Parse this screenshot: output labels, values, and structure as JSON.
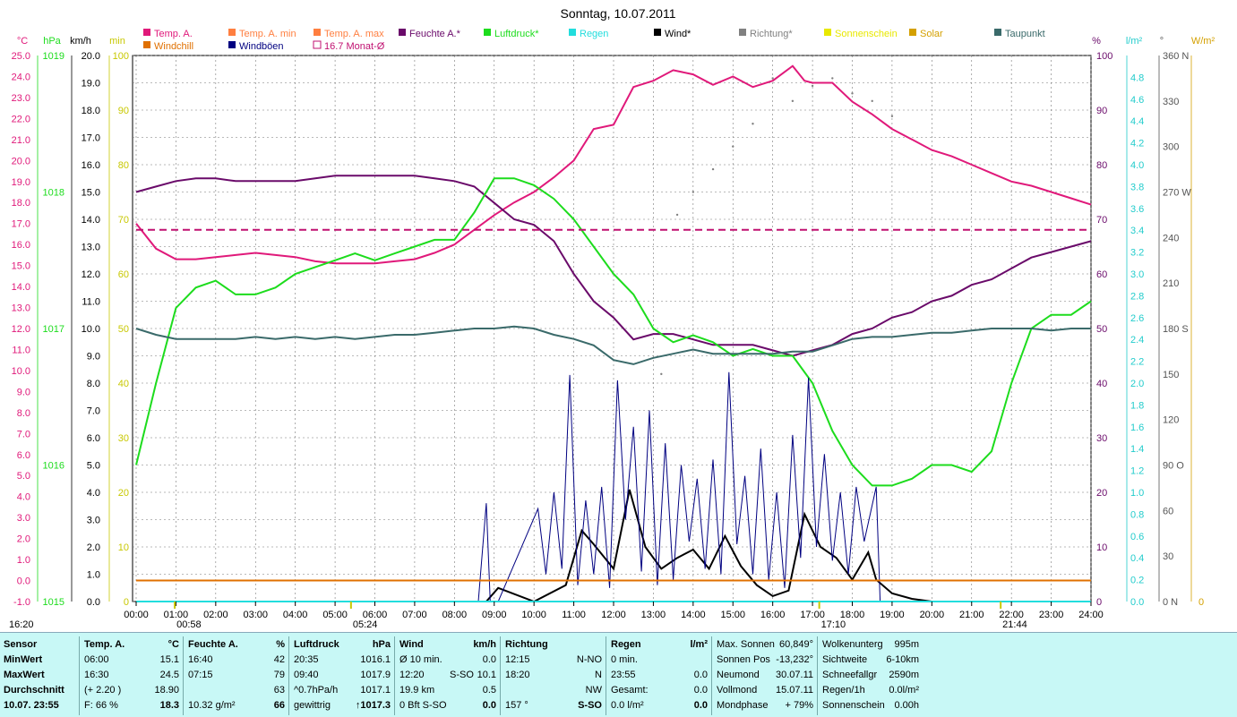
{
  "title": "Sonntag, 10.07.2011",
  "unit_labels": {
    "celsius": "°C",
    "hpa": "hPa",
    "kmh": "km/h",
    "min": "min",
    "percent": "%",
    "lm2": "l/m²",
    "deg": "°",
    "wm2": "W/m²"
  },
  "legend": [
    {
      "label": "Temp. A.",
      "color": "#e0197a"
    },
    {
      "label": "Temp. A. min",
      "color": "#ff7f40"
    },
    {
      "label": "Temp. A. max",
      "color": "#ff7f40"
    },
    {
      "label": "Feuchte A.*",
      "color": "#6a0a6a"
    },
    {
      "label": "Luftdruck*",
      "color": "#1ddc1d"
    },
    {
      "label": "Regen",
      "color": "#22dddd"
    },
    {
      "label": "Wind*",
      "color": "#000000"
    },
    {
      "label": "Richtung*",
      "color": "#808080"
    },
    {
      "label": "Sonnenschein",
      "color": "#e8e800"
    },
    {
      "label": "Solar",
      "color": "#d4a000"
    },
    {
      "label": "Taupunkt",
      "color": "#3a6a6a"
    },
    {
      "label": "Windchill",
      "color": "#e07000"
    },
    {
      "label": "Windböen",
      "color": "#000080"
    },
    {
      "label": "16.7 Monat-Ø",
      "color": "#c01070"
    }
  ],
  "chart_data": {
    "type": "line",
    "title": "Sonntag, 10.07.2011",
    "x_ticks": [
      "00:00",
      "01:00",
      "02:00",
      "03:00",
      "04:00",
      "05:00",
      "06:00",
      "07:00",
      "08:00",
      "09:00",
      "10:00",
      "11:00",
      "12:00",
      "13:00",
      "14:00",
      "15:00",
      "16:00",
      "17:00",
      "18:00",
      "19:00",
      "20:00",
      "21:00",
      "22:00",
      "23:00",
      "24:00"
    ],
    "axes": {
      "temp_c": {
        "ticks": [
          "25.0",
          "24.0",
          "23.0",
          "22.0",
          "21.0",
          "20.0",
          "19.0",
          "18.0",
          "17.0",
          "16.0",
          "15.0",
          "14.0",
          "13.0",
          "12.0",
          "11.0",
          "10.0",
          "9.0",
          "8.0",
          "7.0",
          "6.0",
          "5.0",
          "4.0",
          "3.0",
          "2.0",
          "1.0",
          "0.0",
          "-1.0"
        ],
        "range": [
          -1,
          25
        ]
      },
      "pressure_hpa": {
        "ticks": [
          "1019",
          "1018",
          "1017",
          "1016",
          "1015"
        ],
        "range": [
          1015,
          1019
        ]
      },
      "wind_kmh": {
        "ticks": [
          "20.0",
          "19.0",
          "18.0",
          "17.0",
          "16.0",
          "15.0",
          "14.0",
          "13.0",
          "12.0",
          "11.0",
          "10.0",
          "9.0",
          "8.0",
          "7.0",
          "6.0",
          "5.0",
          "4.0",
          "3.0",
          "2.0",
          "1.0",
          "0.0"
        ],
        "range": [
          0,
          20
        ]
      },
      "sun_min": {
        "ticks": [
          "100",
          "90",
          "80",
          "70",
          "60",
          "50",
          "40",
          "30",
          "20",
          "10",
          "0"
        ],
        "range": [
          0,
          100
        ]
      },
      "humidity_pct": {
        "ticks": [
          "100",
          "90",
          "80",
          "70",
          "60",
          "50",
          "40",
          "30",
          "20",
          "10",
          "0"
        ],
        "range": [
          0,
          100
        ]
      },
      "rain_lm2": {
        "ticks": [
          "4.8",
          "4.6",
          "4.4",
          "4.2",
          "4.0",
          "3.8",
          "3.6",
          "3.4",
          "3.2",
          "3.0",
          "2.8",
          "2.6",
          "2.4",
          "2.2",
          "2.0",
          "1.8",
          "1.6",
          "1.4",
          "1.2",
          "1.0",
          "0.8",
          "0.6",
          "0.4",
          "0.2",
          "0.0"
        ],
        "range": [
          0,
          5
        ]
      },
      "direction_deg": {
        "ticks": [
          "360 N",
          "330",
          "300",
          "270 W",
          "240",
          "210",
          "180 S",
          "150",
          "120",
          "90 O",
          "60",
          "30",
          "0 N"
        ],
        "range": [
          0,
          360
        ]
      },
      "solar_wm2": {
        "ticks": [
          "0"
        ],
        "range": [
          0,
          0
        ]
      }
    },
    "series": [
      {
        "name": "Temp. A.",
        "axis": "temp_c",
        "x": [
          0,
          0.5,
          1,
          1.5,
          2,
          2.5,
          3,
          3.5,
          4,
          4.5,
          5,
          5.5,
          6,
          6.5,
          7,
          7.5,
          8,
          8.5,
          9,
          9.5,
          10,
          10.5,
          11,
          11.5,
          12,
          12.5,
          13,
          13.5,
          14,
          14.5,
          15,
          15.5,
          16,
          16.5,
          16.8,
          17,
          17.5,
          18,
          18.5,
          19,
          19.5,
          20,
          20.5,
          21,
          21.5,
          22,
          22.5,
          23,
          23.5,
          24
        ],
        "y": [
          17.0,
          15.8,
          15.3,
          15.3,
          15.4,
          15.5,
          15.6,
          15.5,
          15.4,
          15.2,
          15.1,
          15.1,
          15.1,
          15.2,
          15.3,
          15.6,
          16.0,
          16.7,
          17.4,
          18.0,
          18.5,
          19.2,
          20.0,
          21.5,
          21.7,
          23.5,
          23.8,
          24.3,
          24.1,
          23.6,
          24.0,
          23.5,
          23.8,
          24.5,
          23.8,
          23.7,
          23.7,
          22.8,
          22.2,
          21.5,
          21.0,
          20.5,
          20.2,
          19.8,
          19.4,
          19.0,
          18.8,
          18.5,
          18.2,
          17.9
        ]
      },
      {
        "name": "Feuchte A.*",
        "axis": "humidity_pct",
        "x": [
          0,
          0.5,
          1,
          1.5,
          2,
          2.5,
          3,
          3.5,
          4,
          4.5,
          5,
          5.5,
          6,
          6.5,
          7,
          7.5,
          8,
          8.5,
          9,
          9.5,
          10,
          10.5,
          11,
          11.5,
          12,
          12.5,
          13,
          13.5,
          14,
          14.5,
          15,
          15.5,
          16,
          16.5,
          17,
          17.5,
          18,
          18.5,
          19,
          19.5,
          20,
          20.5,
          21,
          21.5,
          22,
          22.5,
          23,
          23.5,
          24
        ],
        "y": [
          75,
          76,
          77,
          77.5,
          77.5,
          77,
          77,
          77,
          77,
          77.5,
          78,
          78,
          78,
          78,
          78,
          77.5,
          77,
          76,
          73,
          70,
          69,
          66,
          60,
          55,
          52,
          48,
          49,
          49,
          48,
          47,
          47,
          47,
          46,
          45,
          46,
          47,
          49,
          50,
          52,
          53,
          55,
          56,
          58,
          59,
          61,
          63,
          64,
          65,
          66
        ]
      },
      {
        "name": "Luftdruck*",
        "axis": "pressure_hpa",
        "x": [
          0,
          0.5,
          1,
          1.5,
          2,
          2.5,
          3,
          3.5,
          4,
          4.5,
          5,
          5.5,
          6,
          6.5,
          7,
          7.5,
          8,
          8.5,
          9,
          9.5,
          10,
          10.5,
          11,
          11.5,
          12,
          12.5,
          13,
          13.5,
          14,
          14.5,
          15,
          15.5,
          16,
          16.5,
          17,
          17.5,
          18,
          18.5,
          19,
          19.5,
          20,
          20.5,
          21,
          21.5,
          22,
          22.5,
          23,
          23.5,
          24
        ],
        "y": [
          1016.0,
          1016.6,
          1017.15,
          1017.3,
          1017.35,
          1017.25,
          1017.25,
          1017.3,
          1017.4,
          1017.45,
          1017.5,
          1017.55,
          1017.5,
          1017.55,
          1017.6,
          1017.65,
          1017.65,
          1017.85,
          1018.1,
          1018.1,
          1018.05,
          1017.95,
          1017.8,
          1017.6,
          1017.4,
          1017.25,
          1017.0,
          1016.9,
          1016.95,
          1016.9,
          1016.8,
          1016.85,
          1016.8,
          1016.8,
          1016.6,
          1016.25,
          1016.0,
          1015.85,
          1015.85,
          1015.9,
          1016.0,
          1016.0,
          1015.95,
          1016.1,
          1016.6,
          1017.0,
          1017.1,
          1017.1,
          1017.2
        ]
      },
      {
        "name": "Taupunkt",
        "axis": "temp_c",
        "x": [
          0,
          0.5,
          1,
          1.5,
          2,
          2.5,
          3,
          3.5,
          4,
          4.5,
          5,
          5.5,
          6,
          6.5,
          7,
          7.5,
          8,
          8.5,
          9,
          9.5,
          10,
          10.5,
          11,
          11.5,
          12,
          12.5,
          13,
          13.5,
          14,
          14.5,
          15,
          15.5,
          16,
          16.5,
          17,
          17.5,
          18,
          18.5,
          19,
          19.5,
          20,
          20.5,
          21,
          21.5,
          22,
          22.5,
          23,
          23.5,
          24
        ],
        "y": [
          12.0,
          11.7,
          11.5,
          11.5,
          11.5,
          11.5,
          11.6,
          11.5,
          11.6,
          11.5,
          11.6,
          11.5,
          11.6,
          11.7,
          11.7,
          11.8,
          11.9,
          12.0,
          12.0,
          12.1,
          12.0,
          11.7,
          11.5,
          11.2,
          10.5,
          10.3,
          10.6,
          10.8,
          11.0,
          10.8,
          10.8,
          10.8,
          10.8,
          10.9,
          10.9,
          11.2,
          11.5,
          11.6,
          11.6,
          11.7,
          11.8,
          11.8,
          11.9,
          12.0,
          12.0,
          12.0,
          11.9,
          12.0,
          12.0
        ]
      },
      {
        "name": "Wind*",
        "axis": "wind_kmh",
        "x": [
          0,
          8.8,
          9.1,
          10,
          10.8,
          11.2,
          11.5,
          12.0,
          12.4,
          12.8,
          13.2,
          13.6,
          14.0,
          14.4,
          14.8,
          15.2,
          15.6,
          16.0,
          16.4,
          16.8,
          17.2,
          17.6,
          18.0,
          18.4,
          18.6,
          19,
          19.5,
          20,
          24
        ],
        "y": [
          0,
          0,
          0.5,
          0,
          0.6,
          2.6,
          2.1,
          1.2,
          4.1,
          2.0,
          1.2,
          1.6,
          1.9,
          1.2,
          2.4,
          1.3,
          0.6,
          0.2,
          0.4,
          3.2,
          2.0,
          1.6,
          0.8,
          1.8,
          0.8,
          0.3,
          0.1,
          0,
          0
        ]
      },
      {
        "name": "Windböen",
        "axis": "wind_kmh",
        "x": [
          0,
          8.6,
          8.8,
          8.9,
          9.1,
          10.1,
          10.3,
          10.5,
          10.7,
          10.9,
          11.1,
          11.3,
          11.5,
          11.7,
          11.9,
          12.1,
          12.3,
          12.5,
          12.7,
          12.9,
          13.1,
          13.3,
          13.5,
          13.7,
          13.9,
          14.1,
          14.3,
          14.5,
          14.7,
          14.9,
          15.1,
          15.3,
          15.5,
          15.7,
          15.9,
          16.1,
          16.3,
          16.5,
          16.7,
          16.9,
          17.1,
          17.3,
          17.5,
          17.7,
          17.9,
          18.1,
          18.3,
          18.6,
          18.7,
          24
        ],
        "y": [
          0,
          0,
          3.6,
          0,
          0,
          3.4,
          1.0,
          4.0,
          1.2,
          8.3,
          0.6,
          3.7,
          1.0,
          4.2,
          0.5,
          8.1,
          3.0,
          6.4,
          1.1,
          7.0,
          0.6,
          5.8,
          0.8,
          5.0,
          2.2,
          4.5,
          1.2,
          5.2,
          1.0,
          8.4,
          2.1,
          4.6,
          1.0,
          5.6,
          0.8,
          4.0,
          0.5,
          6.1,
          1.6,
          8.2,
          2.0,
          5.4,
          1.5,
          4.0,
          1.0,
          4.2,
          2.2,
          4.2,
          0,
          0
        ]
      },
      {
        "name": "Richtung*",
        "axis": "direction_deg",
        "x": [
          13.2,
          13.6,
          14.0,
          14.5,
          15.0,
          15.5,
          16.0,
          16.5,
          17.0,
          17.5,
          18.0,
          18.5,
          19.0
        ],
        "y": [
          150,
          255,
          270,
          285,
          300,
          315,
          345,
          330,
          340,
          345,
          335,
          330,
          320
        ]
      },
      {
        "name": "Windchill",
        "axis": "temp_c",
        "x": [
          0,
          24
        ],
        "y": [
          0.0,
          0.0
        ]
      },
      {
        "name": "16.7 Monat-Ø",
        "axis": "temp_c",
        "x": [
          0,
          24
        ],
        "y": [
          16.7,
          16.7
        ]
      },
      {
        "name": "Regen",
        "axis": "rain_lm2",
        "x": [
          0,
          24
        ],
        "y": [
          0,
          0
        ]
      }
    ],
    "markers": [
      {
        "label": "00:58",
        "x": 0.97
      },
      {
        "label": "05:24",
        "x": 5.4
      },
      {
        "label": "17:10",
        "x": 17.17
      },
      {
        "label": "21:44",
        "x": 21.73
      }
    ]
  },
  "table": {
    "sensor": {
      "header": "Sensor",
      "rows": [
        "MinWert",
        "MaxWert",
        "Durchschnitt",
        "10.07.  23:55"
      ]
    },
    "temp": {
      "header": "Temp. A.",
      "unit": "°C",
      "rows": [
        [
          "06:00",
          "15.1"
        ],
        [
          "16:30",
          "24.5"
        ],
        [
          "(+ 2.20 )",
          "18.90"
        ],
        [
          "F: 66 %",
          "18.3"
        ]
      ]
    },
    "feuchte": {
      "header": "Feuchte A.",
      "unit": "%",
      "rows": [
        [
          "16:40",
          "42"
        ],
        [
          "07:15",
          "79"
        ],
        [
          "",
          "63"
        ],
        [
          "10.32 g/m²",
          "66"
        ]
      ]
    },
    "luftdruck": {
      "header": "Luftdruck",
      "unit": "hPa",
      "rows": [
        [
          "20:35",
          "1016.1"
        ],
        [
          "09:40",
          "1017.9"
        ],
        [
          "^0.7hPa/h",
          "1017.1"
        ],
        [
          "gewittrig",
          "↑1017.3"
        ]
      ]
    },
    "wind": {
      "header": "Wind",
      "unit": "km/h",
      "rows": [
        [
          "Ø 10 min.",
          "",
          "0.0"
        ],
        [
          "12:20",
          "S-SO",
          "10.1"
        ],
        [
          "19.9 km",
          "",
          "0.5"
        ],
        [
          "0 Bft S-SO",
          "",
          "0.0"
        ]
      ]
    },
    "richtung": {
      "header": "Richtung",
      "rows": [
        [
          "12:15",
          "N-NO"
        ],
        [
          "18:20",
          "N"
        ],
        [
          "",
          "NW"
        ],
        [
          "157 °",
          "S-SO"
        ]
      ]
    },
    "regen": {
      "header": "Regen",
      "unit": "l/m²",
      "rows": [
        [
          "0 min.",
          ""
        ],
        [
          "23:55",
          "0.0"
        ],
        [
          "Gesamt:",
          "0.0"
        ],
        [
          "0.0 l/m²",
          "0.0"
        ]
      ]
    },
    "sonne": {
      "rows": [
        [
          "Max. Sonnen",
          "60,849°"
        ],
        [
          "Sonnen Pos",
          "-13,232°"
        ],
        [
          "Neumond",
          "30.07.11"
        ],
        [
          "Vollmond",
          "15.07.11"
        ],
        [
          "Mondphase",
          "+ 79%"
        ]
      ]
    },
    "wolken": {
      "rows": [
        [
          "Wolkenunterg",
          "995m"
        ],
        [
          "Sichtweite",
          "6-10km"
        ],
        [
          "Schneefallgr",
          "2590m"
        ],
        [
          "Regen/1h",
          "0.0l/m²"
        ],
        [
          "Sonnenschein",
          "0.00h"
        ]
      ]
    }
  },
  "time_label": "16:20"
}
